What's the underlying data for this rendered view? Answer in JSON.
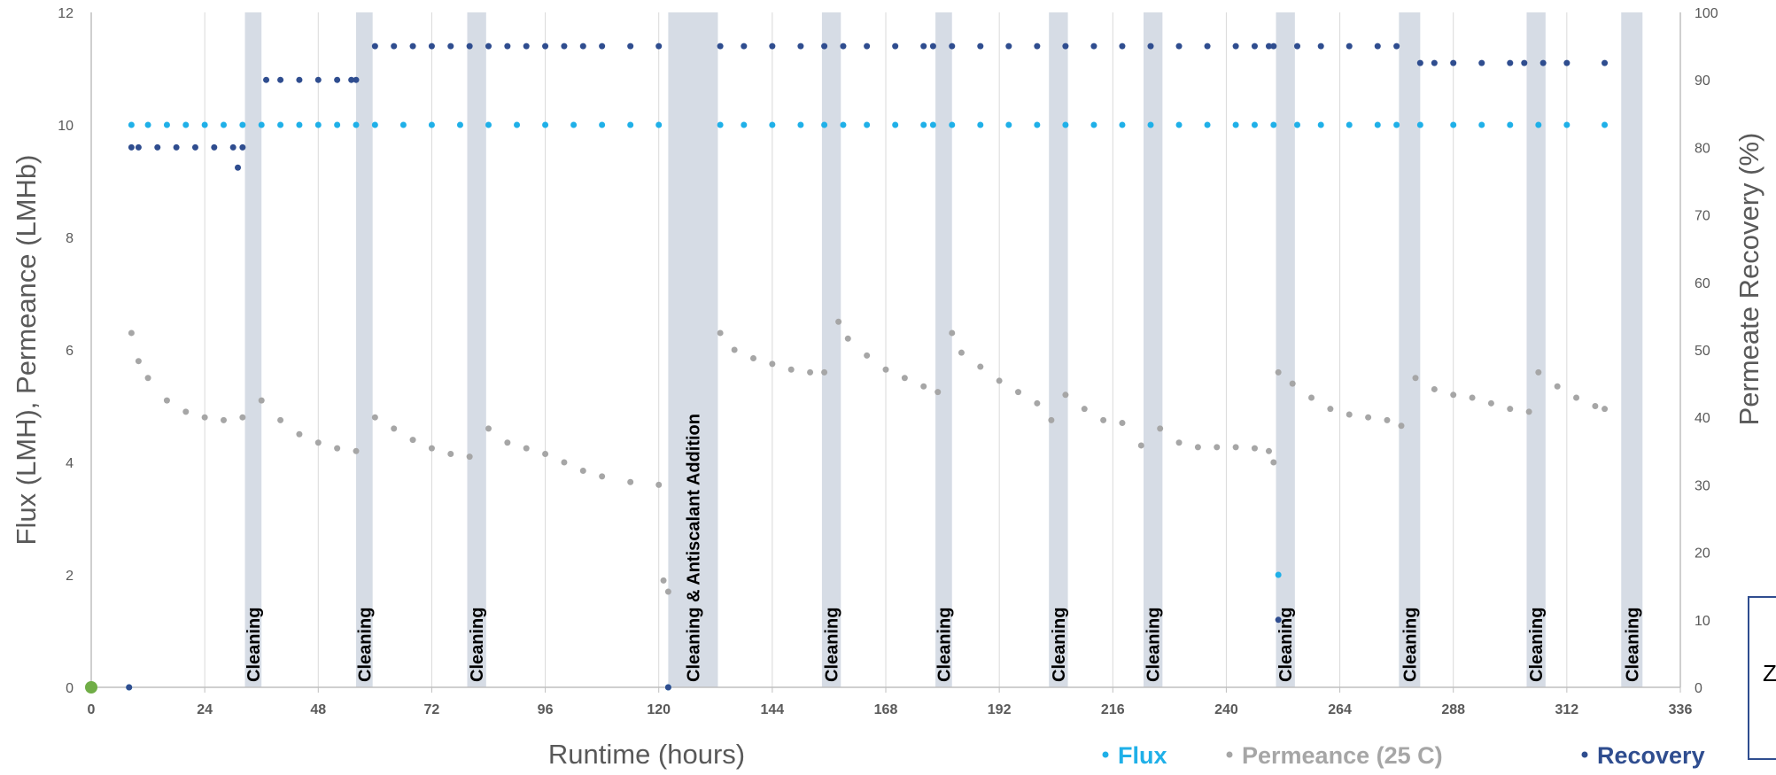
{
  "chart_data": {
    "type": "scatter",
    "xlabel": "Runtime (hours)",
    "ylabel": "Flux (LMH), Permeance (LMHb)",
    "y2label": "Permeate Recovery (%)",
    "xlim": [
      0,
      336
    ],
    "ylim": [
      0,
      12
    ],
    "y2lim": [
      0,
      100
    ],
    "xticks": [
      "0",
      "24",
      "48",
      "72",
      "96",
      "120",
      "144",
      "168",
      "192",
      "216",
      "240",
      "264",
      "288",
      "312",
      "336"
    ],
    "yticks": [
      "0",
      "2",
      "4",
      "6",
      "8",
      "10",
      "12"
    ],
    "y2ticks": [
      "0",
      "10",
      "20",
      "30",
      "40",
      "50",
      "60",
      "70",
      "80",
      "90",
      "100"
    ],
    "grid": "vertical",
    "legend_position": "bottom-right",
    "colors": {
      "flux": "#1fb0e8",
      "permeance": "#a6a6a6",
      "recovery": "#2f4d8f",
      "band": "#d6dce5",
      "start_marker": "#70ad47"
    },
    "cleaning_events": [
      {
        "label": "Cleaning",
        "start": 32.5,
        "end": 36.0
      },
      {
        "label": "Cleaning",
        "start": 56.0,
        "end": 59.5
      },
      {
        "label": "Cleaning",
        "start": 79.5,
        "end": 83.5
      },
      {
        "label": "Cleaning & Antiscalant Addition",
        "start": 122.0,
        "end": 132.5
      },
      {
        "label": "Cleaning",
        "start": 154.5,
        "end": 158.5
      },
      {
        "label": "Cleaning",
        "start": 178.5,
        "end": 182.0
      },
      {
        "label": "Cleaning",
        "start": 202.5,
        "end": 206.5
      },
      {
        "label": "Cleaning",
        "start": 222.5,
        "end": 226.5
      },
      {
        "label": "Cleaning",
        "start": 250.5,
        "end": 254.5
      },
      {
        "label": "Cleaning",
        "start": 276.5,
        "end": 281.0
      },
      {
        "label": "Cleaning",
        "start": 303.5,
        "end": 307.5
      },
      {
        "label": "Cleaning",
        "start": 323.5,
        "end": 328.0
      }
    ],
    "series": [
      {
        "name": "Flux",
        "axis": "left",
        "x": [
          0,
          8,
          8.5,
          12,
          16,
          20,
          24,
          28,
          32,
          36,
          40,
          44,
          48,
          52,
          56,
          60,
          66,
          72,
          78,
          84,
          90,
          96,
          102,
          108,
          114,
          120,
          122,
          133,
          138,
          144,
          150,
          155,
          159,
          164,
          170,
          176,
          178,
          182,
          188,
          194,
          200,
          206,
          212,
          218,
          224,
          230,
          236,
          242,
          246,
          250,
          251,
          255,
          260,
          266,
          272,
          276,
          281,
          288,
          294,
          300,
          306,
          312,
          320
        ],
        "y": [
          0,
          0,
          10,
          10,
          10,
          10,
          10,
          10,
          10,
          10,
          10,
          10,
          10,
          10,
          10,
          10,
          10,
          10,
          10,
          10,
          10,
          10,
          10,
          10,
          10,
          10,
          0,
          10,
          10,
          10,
          10,
          10,
          10,
          10,
          10,
          10,
          10,
          10,
          10,
          10,
          10,
          10,
          10,
          10,
          10,
          10,
          10,
          10,
          10,
          10,
          2,
          10,
          10,
          10,
          10,
          10,
          10,
          10,
          10,
          10,
          10,
          10,
          10
        ]
      },
      {
        "name": "Permeance (25 C)",
        "axis": "left",
        "x": [
          8.5,
          10,
          12,
          16,
          20,
          24,
          28,
          32,
          36,
          40,
          44,
          48,
          52,
          56,
          60,
          64,
          68,
          72,
          76,
          80,
          84,
          88,
          92,
          96,
          100,
          104,
          108,
          114,
          120,
          121,
          122,
          133,
          136,
          140,
          144,
          148,
          152,
          155,
          158,
          160,
          164,
          168,
          172,
          176,
          179,
          182,
          184,
          188,
          192,
          196,
          200,
          203,
          206,
          210,
          214,
          218,
          222,
          226,
          230,
          234,
          238,
          242,
          246,
          249,
          250,
          251,
          254,
          258,
          262,
          266,
          270,
          274,
          277,
          280,
          284,
          288,
          292,
          296,
          300,
          304,
          306,
          310,
          314,
          318,
          320
        ],
        "y": [
          6.3,
          5.8,
          5.5,
          5.1,
          4.9,
          4.8,
          4.75,
          4.8,
          5.1,
          4.75,
          4.5,
          4.35,
          4.25,
          4.2,
          4.8,
          4.6,
          4.4,
          4.25,
          4.15,
          4.1,
          4.6,
          4.35,
          4.25,
          4.15,
          4.0,
          3.85,
          3.75,
          3.65,
          3.6,
          1.9,
          1.7,
          6.3,
          6.0,
          5.85,
          5.75,
          5.65,
          5.6,
          5.6,
          6.5,
          6.2,
          5.9,
          5.65,
          5.5,
          5.35,
          5.25,
          6.3,
          5.95,
          5.7,
          5.45,
          5.25,
          5.05,
          4.75,
          5.2,
          4.95,
          4.75,
          4.7,
          4.3,
          4.6,
          4.35,
          4.27,
          4.27,
          4.27,
          4.25,
          4.2,
          4.0,
          5.6,
          5.4,
          5.15,
          4.95,
          4.85,
          4.8,
          4.75,
          4.65,
          5.5,
          5.3,
          5.2,
          5.15,
          5.05,
          4.95,
          4.9,
          5.6,
          5.35,
          5.15,
          5.0,
          4.95
        ]
      },
      {
        "name": "Recovery",
        "axis": "right",
        "x": [
          0,
          8,
          8.5,
          10,
          14,
          18,
          22,
          26,
          30,
          31,
          32,
          37,
          40,
          44,
          48,
          52,
          55,
          56,
          60,
          64,
          68,
          72,
          76,
          80,
          84,
          88,
          92,
          96,
          100,
          104,
          108,
          114,
          120,
          122,
          133,
          138,
          144,
          150,
          155,
          159,
          164,
          170,
          176,
          178,
          182,
          188,
          194,
          200,
          206,
          212,
          218,
          224,
          230,
          236,
          242,
          246,
          249,
          250,
          251,
          255,
          260,
          266,
          272,
          276,
          281,
          284,
          288,
          294,
          300,
          303,
          307,
          312,
          320
        ],
        "y": [
          0,
          0,
          80,
          80,
          80,
          80,
          80,
          80,
          80,
          77,
          80,
          90,
          90,
          90,
          90,
          90,
          90,
          90,
          95,
          95,
          95,
          95,
          95,
          95,
          95,
          95,
          95,
          95,
          95,
          95,
          95,
          95,
          95,
          0,
          95,
          95,
          95,
          95,
          95,
          95,
          95,
          95,
          95,
          95,
          95,
          95,
          95,
          95,
          95,
          95,
          95,
          95,
          95,
          95,
          95,
          95,
          95,
          95,
          10,
          95,
          95,
          95,
          95,
          95,
          92.5,
          92.5,
          92.5,
          92.5,
          92.5,
          92.5,
          92.5,
          92.5,
          92.5
        ]
      }
    ]
  }
}
